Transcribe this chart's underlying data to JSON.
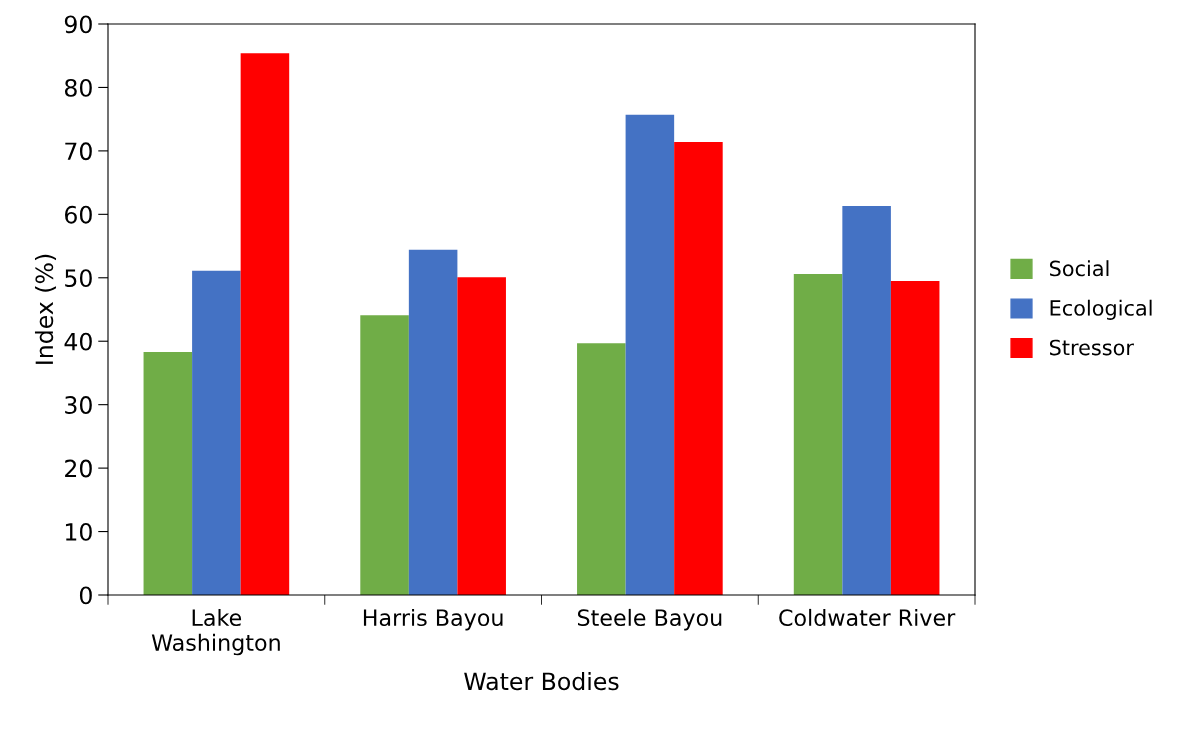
{
  "chart_data": {
    "type": "bar",
    "xlabel": "Water Bodies",
    "ylabel": "Index (%)",
    "categories": [
      "Lake\nWashington",
      "Harris Bayou",
      "Steele Bayou",
      "Coldwater River"
    ],
    "series": [
      {
        "name": "Social",
        "color": "#70ad47",
        "values": [
          38.3,
          44.1,
          39.7,
          50.6
        ]
      },
      {
        "name": "Ecological",
        "color": "#4472c4",
        "values": [
          51.1,
          54.4,
          75.7,
          61.3
        ]
      },
      {
        "name": "Stressor",
        "color": "#ff0000",
        "values": [
          85.4,
          50.1,
          71.4,
          49.5
        ]
      }
    ],
    "ylim": [
      0,
      90
    ],
    "yticks": [
      0,
      10,
      20,
      30,
      40,
      50,
      60,
      70,
      80,
      90
    ],
    "grid": false,
    "legend": "right"
  }
}
